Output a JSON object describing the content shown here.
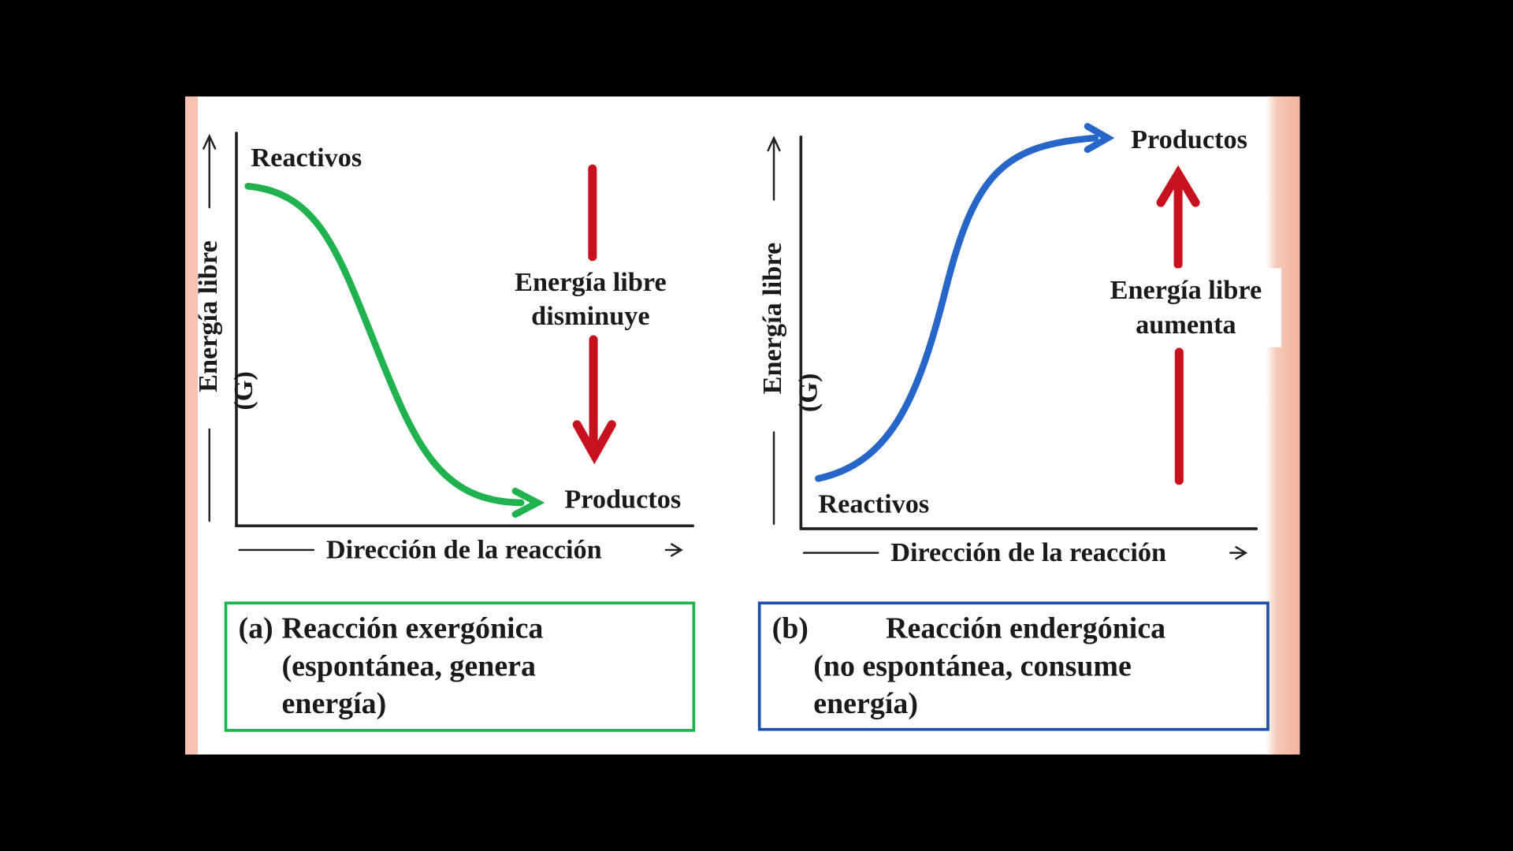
{
  "panels": [
    {
      "y_label": "Energía libre",
      "y_symbol": "(G)",
      "x_label": "Dirección de la reacción",
      "start_label": "Reactivos",
      "end_label": "Productos",
      "change_label": [
        "Energía libre",
        "disminuye"
      ],
      "caption_tag": "(a)",
      "caption": [
        "Reacción exergónica",
        "(espontánea, genera",
        "energía)"
      ]
    },
    {
      "y_label": "Energía libre",
      "y_symbol": "(G)",
      "x_label": "Dirección de la reacción",
      "start_label": "Reactivos",
      "end_label": "Productos",
      "change_label": [
        "Energía libre",
        "aumenta"
      ],
      "caption_tag": "(b)",
      "caption": [
        "Reacción endergónica",
        "(no espontánea, consume",
        "energía)"
      ]
    }
  ]
}
